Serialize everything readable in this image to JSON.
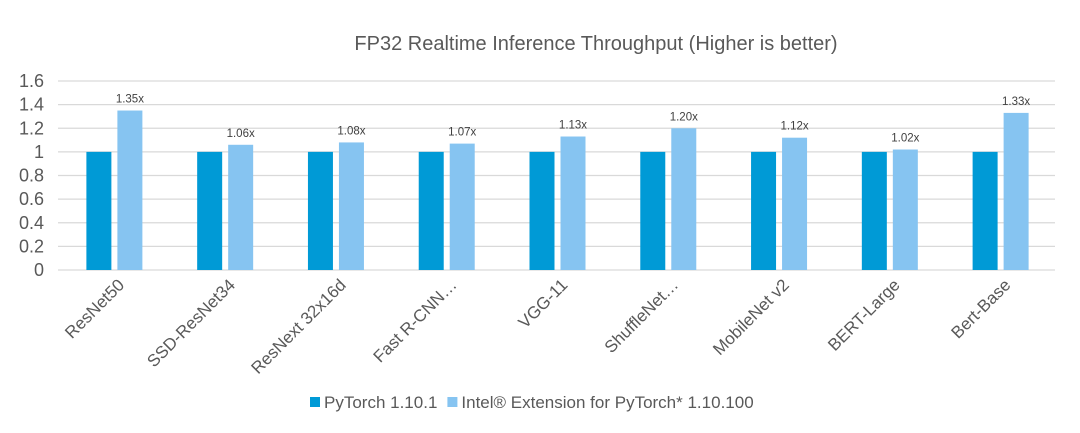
{
  "chart_data": {
    "type": "bar",
    "title": "FP32 Realtime Inference Throughput (Higher is better)",
    "xlabel": "",
    "ylabel": "",
    "ylim": [
      0,
      1.6
    ],
    "yticks": [
      "0",
      "0.2",
      "0.4",
      "0.6",
      "0.8",
      "1",
      "1.2",
      "1.4",
      "1.6"
    ],
    "grid": true,
    "legend_position": "bottom",
    "categories": [
      "ResNet50",
      "SSD-ResNet34",
      "ResNext 32x16d",
      "Fast R-CNN…",
      "VGG-11",
      "ShuffleNet…",
      "MobileNet v2",
      "BERT-Large",
      "Bert-Base"
    ],
    "series": [
      {
        "name": "PyTorch 1.10.1",
        "color": "#009ad6",
        "values": [
          1,
          1,
          1,
          1,
          1,
          1,
          1,
          1,
          1
        ]
      },
      {
        "name": "Intel® Extension for PyTorch* 1.10.100",
        "color": "#86c4f1",
        "values": [
          1.35,
          1.06,
          1.08,
          1.07,
          1.13,
          1.2,
          1.12,
          1.02,
          1.33
        ],
        "data_labels": [
          "1.35x",
          "1.06x",
          "1.08x",
          "1.07x",
          "1.13x",
          "1.20x",
          "1.12x",
          "1.02x",
          "1.33x"
        ]
      }
    ]
  }
}
